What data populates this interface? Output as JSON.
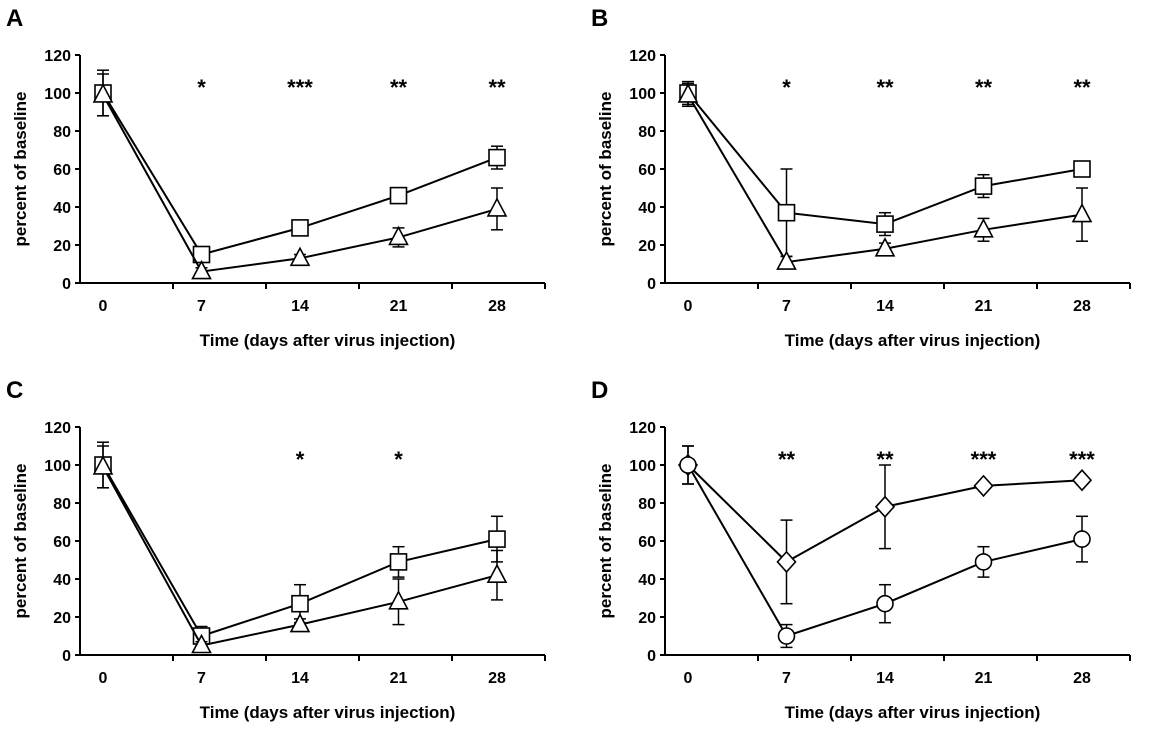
{
  "chart_data": [
    {
      "type": "line",
      "panel_label": "A",
      "xlabel": "Time (days after virus injection)",
      "ylabel": "percent of baseline",
      "x": [
        0,
        7,
        14,
        21,
        28
      ],
      "xticks": [
        "0",
        "7",
        "14",
        "21",
        "28"
      ],
      "yticks": [
        "0",
        "20",
        "40",
        "60",
        "80",
        "100",
        "120"
      ],
      "ylim": [
        0,
        120
      ],
      "series": [
        {
          "marker": "square",
          "values": [
            100,
            15,
            29,
            46,
            66
          ],
          "errors": [
            12,
            3,
            4,
            4,
            6
          ]
        },
        {
          "marker": "triangle",
          "values": [
            99,
            6,
            13,
            24,
            39
          ],
          "errors": [
            11,
            2,
            2,
            5,
            11
          ]
        }
      ],
      "significance": [
        "",
        "*",
        "***",
        "**",
        "**"
      ]
    },
    {
      "type": "line",
      "panel_label": "B",
      "xlabel": "Time (days after virus injection)",
      "ylabel": "percent of baseline",
      "x": [
        0,
        7,
        14,
        21,
        28
      ],
      "xticks": [
        "0",
        "7",
        "14",
        "21",
        "28"
      ],
      "yticks": [
        "0",
        "20",
        "40",
        "60",
        "80",
        "100",
        "120"
      ],
      "ylim": [
        0,
        120
      ],
      "series": [
        {
          "marker": "square",
          "values": [
            100,
            37,
            31,
            51,
            60
          ],
          "errors": [
            6,
            23,
            6,
            6,
            0
          ]
        },
        {
          "marker": "triangle",
          "values": [
            99,
            11,
            18,
            28,
            36
          ],
          "errors": [
            6,
            3,
            3,
            6,
            14
          ]
        }
      ],
      "significance": [
        "",
        "*",
        "**",
        "**",
        "**"
      ]
    },
    {
      "type": "line",
      "panel_label": "C",
      "xlabel": "Time (days after virus injection)",
      "ylabel": "percent of baseline",
      "x": [
        0,
        7,
        14,
        21,
        28
      ],
      "xticks": [
        "0",
        "7",
        "14",
        "21",
        "28"
      ],
      "yticks": [
        "0",
        "20",
        "40",
        "60",
        "80",
        "100",
        "120"
      ],
      "ylim": [
        0,
        120
      ],
      "series": [
        {
          "marker": "square",
          "values": [
            100,
            10,
            27,
            49,
            61
          ],
          "errors": [
            12,
            5,
            10,
            8,
            12
          ]
        },
        {
          "marker": "triangle",
          "values": [
            99,
            5,
            16,
            28,
            42
          ],
          "errors": [
            11,
            2,
            3,
            12,
            13
          ]
        }
      ],
      "significance": [
        "",
        "",
        "*",
        "*",
        ""
      ]
    },
    {
      "type": "line",
      "panel_label": "D",
      "xlabel": "Time (days after virus injection)",
      "ylabel": "percent of baseline",
      "x": [
        0,
        7,
        14,
        21,
        28
      ],
      "xticks": [
        "0",
        "7",
        "14",
        "21",
        "28"
      ],
      "yticks": [
        "0",
        "20",
        "40",
        "60",
        "80",
        "100",
        "120"
      ],
      "ylim": [
        0,
        120
      ],
      "series": [
        {
          "marker": "diamond",
          "values": [
            100,
            49,
            78,
            89,
            92
          ],
          "errors": [
            10,
            22,
            22,
            2,
            2
          ]
        },
        {
          "marker": "circle",
          "values": [
            100,
            10,
            27,
            49,
            61
          ],
          "errors": [
            10,
            6,
            10,
            8,
            12
          ]
        }
      ],
      "significance": [
        "",
        "**",
        "**",
        "***",
        "***"
      ]
    }
  ]
}
